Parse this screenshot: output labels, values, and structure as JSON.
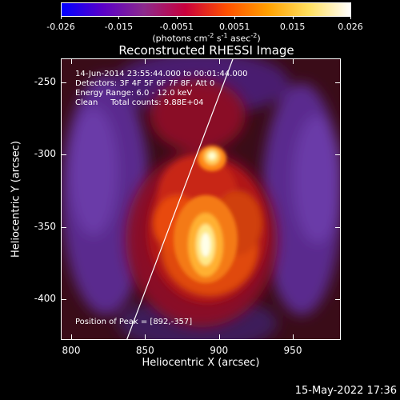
{
  "colorbar": {
    "ticks": [
      "-0.026",
      "-0.015",
      "-0.0051",
      "0.0051",
      "0.015",
      "0.026"
    ],
    "units_main": "(photons cm",
    "units_exp1": "-2",
    "units_mid": " s",
    "units_exp2": "-1",
    "units_mid2": " asec",
    "units_exp3": "-2",
    "units_end": ")"
  },
  "plot": {
    "title": "Reconstructed RHESSI Image",
    "info": {
      "time": "14-Jun-2014 23:55:44.000 to 00:01:44.000",
      "detectors": "Detectors: 3F 4F 5F 6F 7F 8F, Att 0",
      "energy": "Energy Range: 6.0 - 12.0 keV",
      "method": "Clean     Total counts: 9.88E+04"
    },
    "peak": "Position of Peak = [892,-357]"
  },
  "axes": {
    "xlabel": "Heliocentric X (arcsec)",
    "ylabel": "Heliocentric Y (arcsec)",
    "xticks": [
      "800",
      "850",
      "900",
      "950"
    ],
    "yticks": [
      "-250",
      "-300",
      "-350",
      "-400"
    ]
  },
  "footer": {
    "timestamp": "15-May-2022 17:36"
  },
  "colors": {
    "colormap": [
      "#0000ff",
      "#5a00c8",
      "#8c2a8c",
      "#c8003c",
      "#ff5000",
      "#ffa000",
      "#ffe060",
      "#ffffff"
    ]
  }
}
